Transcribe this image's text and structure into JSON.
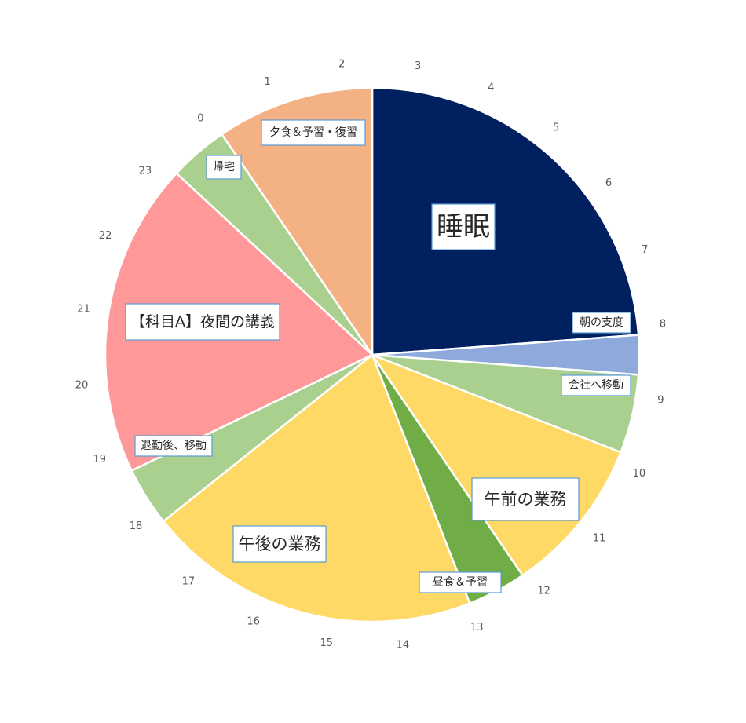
{
  "chart_data": {
    "type": "pie",
    "title": "",
    "unit": "hours",
    "start_hour": 2,
    "hour_ticks": [
      "0",
      "1",
      "2",
      "3",
      "4",
      "5",
      "6",
      "7",
      "8",
      "9",
      "10",
      "11",
      "12",
      "13",
      "14",
      "15",
      "16",
      "17",
      "18",
      "19",
      "20",
      "21",
      "22",
      "23"
    ],
    "slices": [
      {
        "label": "睡眠",
        "value": 5,
        "color": "#002060"
      },
      {
        "label": "朝の支度",
        "value": 0.5,
        "color": "#8EA9DB"
      },
      {
        "label": "会社へ移動",
        "value": 1,
        "color": "#A9D08E"
      },
      {
        "label": "午前の業務",
        "value": 2,
        "color": "#FFD966"
      },
      {
        "label": "昼食＆予習",
        "value": 0.75,
        "color": "#70AD47"
      },
      {
        "label": "午後の業務",
        "value": 4.25,
        "color": "#FFD966"
      },
      {
        "label": "退勤後、移動",
        "value": 0.75,
        "color": "#A9D08E"
      },
      {
        "label": "【科目A】夜間の講義",
        "value": 4,
        "color": "#FF9999"
      },
      {
        "label": "帰宅",
        "value": 0.75,
        "color": "#A9D08E"
      },
      {
        "label": "夕食＆予習・復習",
        "value": 2,
        "color": "#F4B183"
      }
    ]
  }
}
